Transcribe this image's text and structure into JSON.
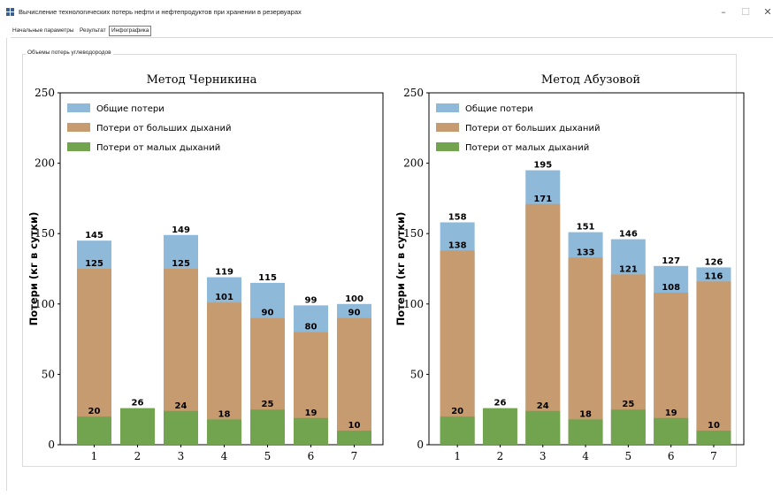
{
  "window": {
    "title": "Вычисление технологических потерь нефти и нефтепродуктов при хранении в резервуарах",
    "minimize_glyph": "–",
    "maximize_glyph": "☐",
    "close_glyph": "✕",
    "icon": "app-grid-icon"
  },
  "tabs": [
    {
      "label": "Начальные параметры"
    },
    {
      "label": "Результат"
    },
    {
      "label": "Инфографика",
      "active": true
    }
  ],
  "group": {
    "title": "Объемы потерь углеводородов"
  },
  "colors": {
    "total": "#8fb9d9",
    "big": "#c69b70",
    "small": "#72a44f"
  },
  "chart_data": [
    {
      "type": "bar",
      "title": "Метод Черникина",
      "ylabel": "Потери (кг в сутки)",
      "ylim": [
        0,
        250
      ],
      "yticks": [
        "0",
        "50",
        "100",
        "150",
        "200",
        "250"
      ],
      "categories": [
        "1",
        "2",
        "3",
        "4",
        "5",
        "6",
        "7"
      ],
      "legend": {
        "placement": "top-left",
        "entries": [
          "Общие потери",
          "Потери от больших дыханий",
          "Потери от малых дыханий"
        ]
      },
      "series": [
        {
          "name": "Общие потери",
          "values": [
            145,
            null,
            149,
            119,
            115,
            99,
            100
          ],
          "labels": [
            "145",
            "",
            "149",
            "119",
            "115",
            "99",
            "100"
          ]
        },
        {
          "name": "Потери от больших дыханий",
          "values": [
            125,
            null,
            125,
            101,
            90,
            80,
            90
          ],
          "labels": [
            "125",
            "",
            "125",
            "101",
            "90",
            "80",
            "90"
          ]
        },
        {
          "name": "Потери от малых дыханий",
          "values": [
            20,
            26,
            24,
            18,
            25,
            19,
            10
          ],
          "labels": [
            "20",
            "26",
            "24",
            "18",
            "25",
            "19",
            "10"
          ]
        }
      ]
    },
    {
      "type": "bar",
      "title": "Метод Абузовой",
      "ylabel": "Потери (кг в сутки)",
      "ylim": [
        0,
        250
      ],
      "yticks": [
        "0",
        "50",
        "100",
        "150",
        "200",
        "250"
      ],
      "categories": [
        "1",
        "2",
        "3",
        "4",
        "5",
        "6",
        "7"
      ],
      "legend": {
        "placement": "top-left",
        "entries": [
          "Общие потери",
          "Потери от больших дыханий",
          "Потери от малых дыханий"
        ]
      },
      "series": [
        {
          "name": "Общие потери",
          "values": [
            158,
            null,
            195,
            151,
            146,
            127,
            126
          ],
          "labels": [
            "158",
            "",
            "195",
            "151",
            "146",
            "127",
            "126"
          ]
        },
        {
          "name": "Потери от больших дыханий",
          "values": [
            138,
            null,
            171,
            133,
            121,
            108,
            116
          ],
          "labels": [
            "138",
            "",
            "171",
            "133",
            "121",
            "108",
            "116"
          ]
        },
        {
          "name": "Потери от малых дыханий",
          "values": [
            20,
            26,
            24,
            18,
            25,
            19,
            10
          ],
          "labels": [
            "20",
            "26",
            "24",
            "18",
            "25",
            "19",
            "10"
          ]
        }
      ]
    }
  ]
}
